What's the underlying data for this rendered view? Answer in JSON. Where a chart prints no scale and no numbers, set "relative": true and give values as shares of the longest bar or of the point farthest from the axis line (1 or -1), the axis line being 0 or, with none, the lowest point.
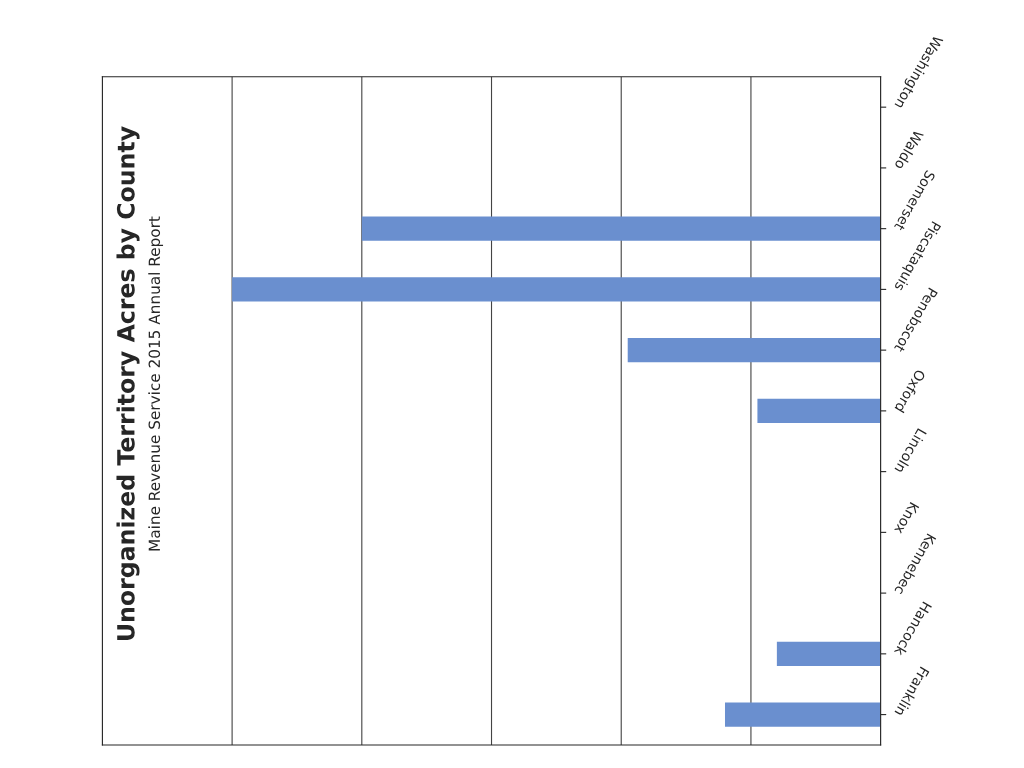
{
  "chart_data": {
    "type": "bar",
    "orientation": "horizontal",
    "relative": true,
    "title": "Unorganized Territory Acres by County",
    "subtitle": "Maine Revenue Service 2015 Annual Report",
    "categories": [
      "Washington",
      "Waldo",
      "Somerset",
      "Piscataquis",
      "Penobscot",
      "Oxford",
      "Lincoln",
      "Knox",
      "Kennebec",
      "Hancock",
      "Franklin"
    ],
    "values": [
      null,
      0,
      0.8,
      1,
      0.39,
      0.19,
      0,
      0,
      0,
      0.16,
      0.24
    ],
    "color": "#6a8fcf",
    "grid": "x",
    "legend": false
  }
}
